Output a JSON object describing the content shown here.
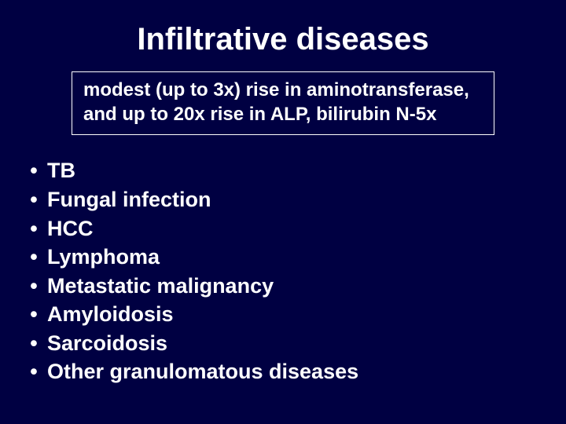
{
  "colors": {
    "background": "#000042",
    "text": "#ffffff",
    "border": "#ffffff"
  },
  "title": {
    "text": "Infiltrative diseases",
    "fontsize": 40
  },
  "subtitle": {
    "line1": "modest (up to 3x) rise in aminotransferase,",
    "line2": "and up to 20x rise in ALP, bilirubin N-5x",
    "fontsize": 24
  },
  "list": {
    "fontsize": 27,
    "bullet": "•",
    "items": [
      "TB",
      "Fungal infection",
      "HCC",
      "Lymphoma",
      "Metastatic malignancy",
      "Amyloidosis",
      "Sarcoidosis",
      "Other granulomatous diseases"
    ]
  }
}
